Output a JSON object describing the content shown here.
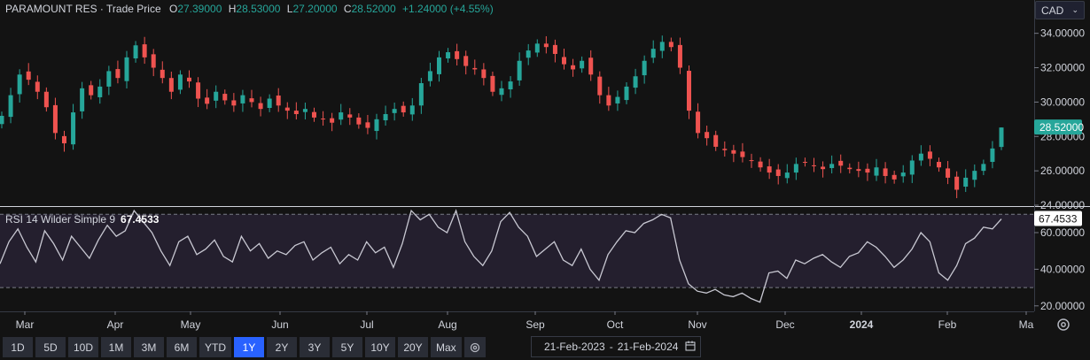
{
  "legend": {
    "symbol": "PARAMOUNT RES",
    "dot": "·",
    "price_type": "Trade Price",
    "o_label": "O",
    "o_value": "27.39000",
    "h_label": "H",
    "h_value": "28.53000",
    "l_label": "L",
    "l_value": "27.20000",
    "c_label": "C",
    "c_value": "28.52000",
    "change": "+1.24000 (+4.55%)"
  },
  "currency": {
    "value": "CAD"
  },
  "rsi_legend": {
    "label": "RSI 14 Wilder Simple 9",
    "value": "67.4533"
  },
  "price_badge": "28.52000",
  "rsi_badge": "67.4533",
  "timeframes": [
    "1D",
    "5D",
    "10D",
    "1M",
    "3M",
    "6M",
    "YTD",
    "1Y",
    "2Y",
    "3Y",
    "5Y",
    "10Y",
    "20Y",
    "Max"
  ],
  "active_timeframe": "1Y",
  "date_range": {
    "from": "21-Feb-2023",
    "sep": "-",
    "to": "21-Feb-2024"
  },
  "colors": {
    "up": "#26a69a",
    "down": "#ef5350",
    "rsi_line": "#c8c8d2",
    "rsi_band": "#241f2e",
    "accent": "#2962ff"
  },
  "chart_data": [
    {
      "type": "candlestick",
      "title": "PARAMOUNT RES",
      "ylim": [
        24,
        34.6
      ],
      "y_ticks": [
        "24.00000",
        "26.00000",
        "28.00000",
        "30.00000",
        "32.00000",
        "34.00000"
      ],
      "x_ticks": [
        "Mar",
        "Apr",
        "May",
        "Jun",
        "Jul",
        "Aug",
        "Sep",
        "Oct",
        "Nov",
        "Dec",
        "2024",
        "Feb",
        "Ma"
      ],
      "close_series": [
        29.2,
        30.4,
        31.6,
        31.3,
        30.6,
        29.7,
        28.2,
        27.6,
        29.4,
        30.8,
        30.4,
        30.9,
        31.8,
        31.4,
        32.6,
        33.3,
        32.6,
        32.0,
        31.4,
        30.6,
        31.6,
        31.2,
        30.2,
        29.9,
        30.6,
        30.1,
        29.8,
        30.4,
        30.0,
        29.6,
        30.2,
        29.8,
        29.5,
        29.3,
        29.6,
        29.1,
        29.0,
        28.8,
        29.4,
        29.1,
        28.7,
        28.5,
        29.0,
        29.3,
        29.6,
        29.4,
        29.8,
        31.1,
        31.8,
        32.6,
        32.9,
        32.5,
        32.1,
        31.9,
        31.4,
        30.6,
        30.8,
        31.2,
        32.4,
        33.0,
        33.4,
        33.2,
        32.8,
        32.2,
        31.9,
        32.4,
        31.6,
        30.4,
        29.8,
        30.3,
        30.9,
        31.5,
        32.4,
        33.1,
        33.5,
        33.2,
        32.0,
        29.5,
        28.2,
        27.9,
        27.4,
        27.2,
        27.0,
        26.8,
        26.6,
        26.2,
        25.9,
        25.7,
        25.9,
        26.4,
        26.5,
        26.3,
        26.1,
        26.4,
        26.3,
        26.1,
        26.0,
        25.9,
        26.2,
        25.7,
        25.5,
        25.9,
        26.6,
        27.0,
        26.7,
        26.2,
        25.6,
        24.9,
        25.6,
        26.0,
        26.4,
        27.3,
        28.52
      ],
      "open": 27.39,
      "high": 28.53,
      "low": 27.2,
      "close": 28.52,
      "period_high": 34.2,
      "period_low": 24.6
    },
    {
      "type": "line",
      "title": "RSI 14 Wilder Simple 9",
      "ylim": [
        17,
        74
      ],
      "y_ticks": [
        "20.00000",
        "40.00000",
        "60.00000"
      ],
      "reference_lines": [
        30,
        70
      ],
      "values": [
        43,
        55,
        62,
        52,
        44,
        61,
        54,
        45,
        58,
        52,
        46,
        56,
        64,
        58,
        61,
        72,
        66,
        60,
        50,
        42,
        55,
        58,
        48,
        51,
        56,
        47,
        44,
        58,
        50,
        54,
        46,
        50,
        48,
        53,
        55,
        45,
        49,
        52,
        43,
        48,
        45,
        55,
        49,
        52,
        41,
        54,
        72,
        67,
        70,
        63,
        60,
        72,
        55,
        47,
        42,
        50,
        66,
        71,
        63,
        58,
        47,
        51,
        55,
        45,
        42,
        51,
        40,
        34,
        48,
        55,
        61,
        60,
        65,
        67,
        70,
        68,
        45,
        32,
        28,
        27,
        29,
        26,
        25,
        27,
        24,
        22,
        38,
        39,
        35,
        45,
        43,
        46,
        48,
        44,
        41,
        47,
        49,
        55,
        52,
        47,
        41,
        45,
        51,
        60,
        55,
        38,
        34,
        42,
        54,
        57,
        63,
        62,
        67.45
      ]
    }
  ]
}
